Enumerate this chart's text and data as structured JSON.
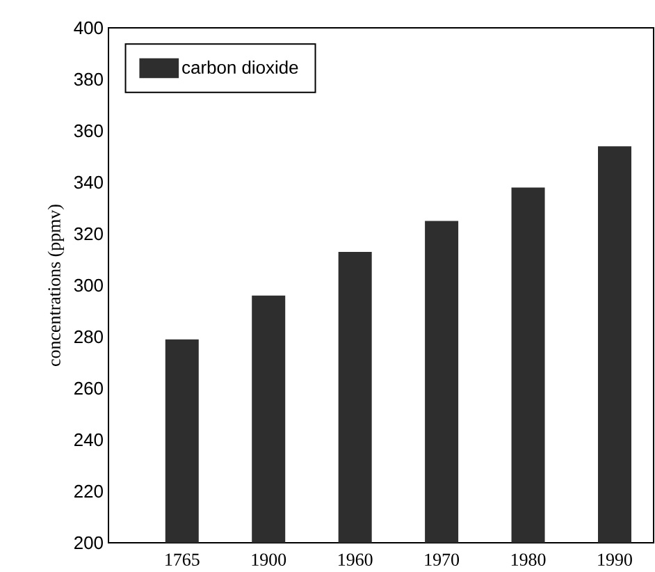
{
  "chart_data": {
    "type": "bar",
    "ylabel": "concentrations    (ppmv)",
    "categories": [
      "1765",
      "1900",
      "1960",
      "1970",
      "1980",
      "1990"
    ],
    "series": [
      {
        "name": "carbon dioxide",
        "color": "#2e2e2e",
        "values": [
          279,
          296,
          313,
          325,
          338,
          354
        ]
      }
    ],
    "ylim": [
      200,
      400
    ],
    "yticks": [
      200,
      220,
      240,
      260,
      280,
      300,
      320,
      340,
      360,
      380,
      400
    ],
    "legend": "top left",
    "grid": false
  }
}
